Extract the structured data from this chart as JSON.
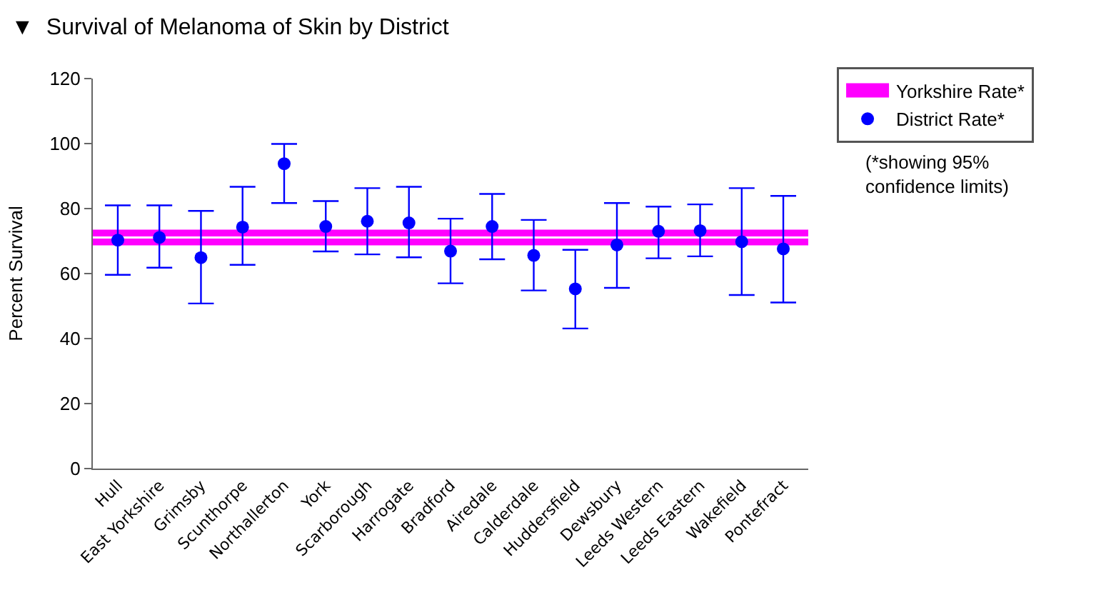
{
  "chart_data": {
    "type": "scatter",
    "title": "▼  Survival of Melanoma of Skin by District",
    "ylabel": "Percent Survival",
    "categories": [
      "Hull",
      "East Yorkshire",
      "Grimsby",
      "Scunthorpe",
      "Northallerton",
      "York",
      "Scarborough",
      "Harrogate",
      "Bradford",
      "Airedale",
      "Calderdale",
      "Huddersfield",
      "Dewsbury",
      "Leeds Western",
      "Leeds Eastern",
      "Wakefield",
      "Pontefract"
    ],
    "series": [
      {
        "name": "District Rate*",
        "color": "#0000ff",
        "values": [
          70.3,
          71.1,
          64.9,
          74.3,
          93.8,
          74.5,
          76.1,
          75.6,
          66.9,
          74.5,
          65.6,
          55.3,
          68.8,
          73.0,
          73.2,
          69.8,
          67.6
        ],
        "errors": [
          [
            59.6,
            81.0
          ],
          [
            61.8,
            81.0
          ],
          [
            50.8,
            79.3
          ],
          [
            62.7,
            86.7
          ],
          [
            81.7,
            99.9
          ],
          [
            66.8,
            82.3
          ],
          [
            65.9,
            86.3
          ],
          [
            65.0,
            86.7
          ],
          [
            57.0,
            76.9
          ],
          [
            64.4,
            84.5
          ],
          [
            54.8,
            76.5
          ],
          [
            43.1,
            67.3
          ],
          [
            55.6,
            81.7
          ],
          [
            64.7,
            80.6
          ],
          [
            65.3,
            81.3
          ],
          [
            53.4,
            86.3
          ],
          [
            51.1,
            83.9
          ]
        ]
      }
    ],
    "bands": [
      {
        "axis": "y",
        "from": 68.7,
        "to": 73.5,
        "label": "Yorkshire Rate*",
        "color": "#ff00ff"
      }
    ],
    "ref_lines": [
      {
        "axis": "y",
        "value": 71.1,
        "color": "#ffffff"
      }
    ],
    "annotations": [
      "(*showing 95%\nconfidence limits)"
    ],
    "ylim": [
      0,
      120
    ],
    "yticks": [
      0,
      20,
      40,
      60,
      80,
      100,
      120
    ],
    "marker": "circle",
    "legend": "right",
    "grid": false
  }
}
